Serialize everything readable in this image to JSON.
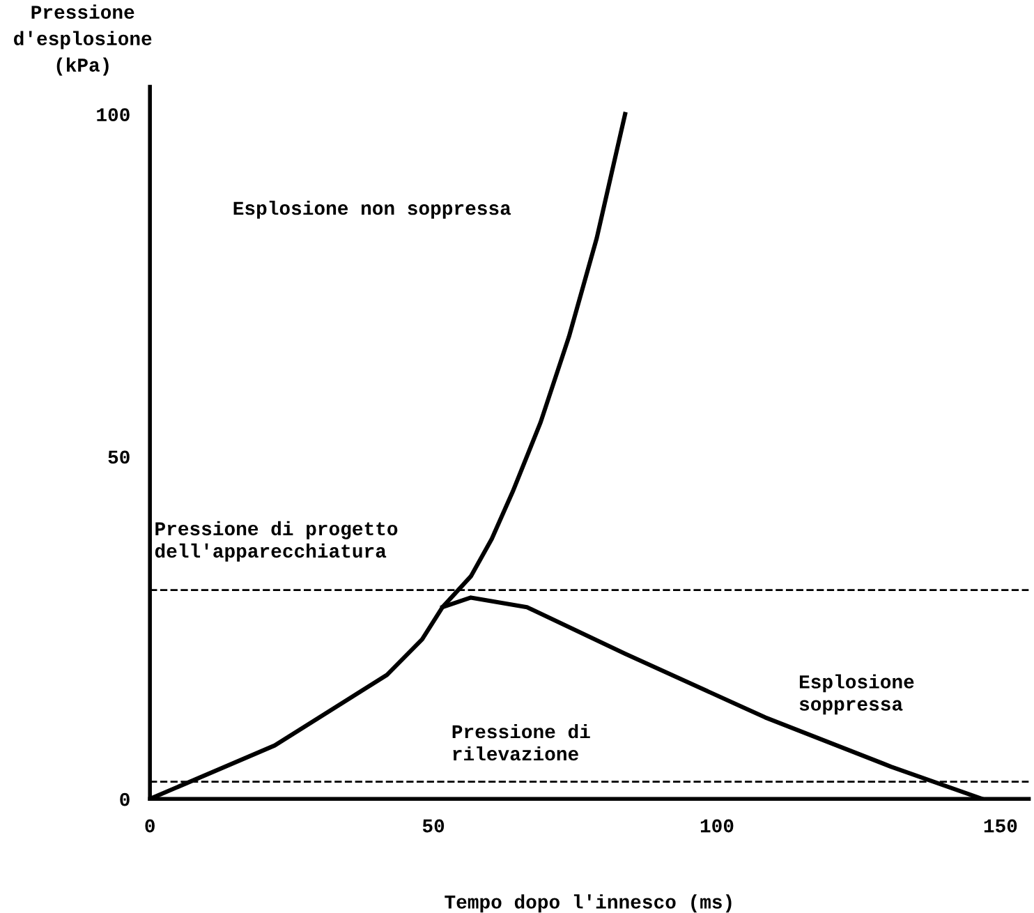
{
  "chart_data": {
    "type": "line",
    "xlabel": "Tempo dopo l'innesco (ms)",
    "ylabel": "Pressione\nd'esplosione\n(kPa)",
    "series": [
      {
        "color": "#000000",
        "x": [
          0,
          22,
          41.8,
          48,
          51.6,
          56.6,
          60.3,
          64,
          68.9,
          73.9,
          78.8,
          83.8
        ],
        "values": [
          0,
          7.8,
          18.1,
          23.3,
          28,
          32.5,
          38,
          44.9,
          55,
          67.5,
          81.9,
          100
        ]
      },
      {
        "color": "#000000",
        "x": [
          51.6,
          56.6,
          66.5,
          83.8,
          108.5,
          130.7,
          146.8
        ],
        "values": [
          28,
          29.4,
          28,
          21.2,
          11.9,
          4.7,
          0
        ]
      }
    ],
    "xlim": [
      0,
      155
    ],
    "ylim": [
      0,
      104
    ],
    "xticks": [
      0,
      50,
      100,
      150
    ],
    "yticks": [
      0,
      50,
      100
    ],
    "grid": false,
    "legend": false,
    "line_style": "solid",
    "marker": "none",
    "ref_lines": [
      {
        "axis": "y",
        "value": 30.5,
        "label": null,
        "color": "#000000",
        "line_style": "dashed"
      },
      {
        "axis": "y",
        "value": 2.5,
        "label": null,
        "color": "#000000",
        "line_style": "dashed"
      }
    ],
    "annotations": [
      "Esplosione non soppressa",
      "Pressione di progetto\ndell'apparecchiatura",
      "Pressione di\nrilevazione",
      "Esplosione\nsoppressa"
    ]
  }
}
